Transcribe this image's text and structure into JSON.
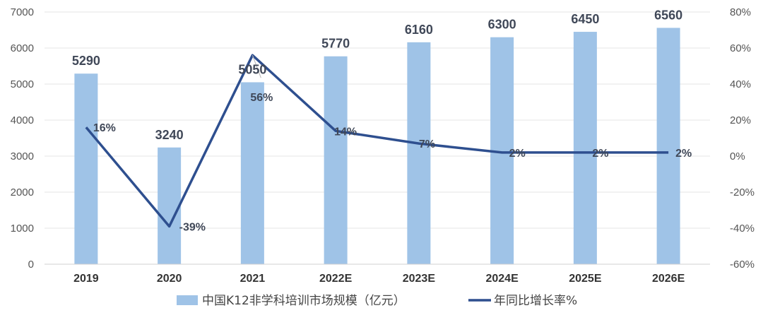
{
  "chart_data": {
    "type": "bar",
    "categories": [
      "2019",
      "2020",
      "2021",
      "2022E",
      "2023E",
      "2024E",
      "2025E",
      "2026E"
    ],
    "series": [
      {
        "name": "中国K12非学科培训市场规模（亿元）",
        "kind": "bar",
        "axis": "left",
        "color": "#9fc3e7",
        "values": [
          5290,
          3240,
          5050,
          5770,
          6160,
          6300,
          6450,
          6560
        ],
        "labels": [
          "5290",
          "3240",
          "5050",
          "5770",
          "6160",
          "6300",
          "6450",
          "6560"
        ]
      },
      {
        "name": "年同比增长率%",
        "kind": "line",
        "axis": "right",
        "color": "#2e4f8f",
        "values": [
          16,
          -39,
          56,
          14,
          7,
          2,
          2,
          2
        ],
        "labels": [
          "16%",
          "-39%",
          "56%",
          "14%",
          "7%",
          "2%",
          "2%",
          "2%"
        ]
      }
    ],
    "y_left": {
      "ylim": [
        0,
        7000
      ],
      "ticks": [
        0,
        1000,
        2000,
        3000,
        4000,
        5000,
        6000,
        7000
      ],
      "tick_labels": [
        "0",
        "1000",
        "2000",
        "3000",
        "4000",
        "5000",
        "6000",
        "7000"
      ]
    },
    "y_right": {
      "ylim": [
        -60,
        80
      ],
      "ticks": [
        -60,
        -40,
        -20,
        0,
        20,
        40,
        60,
        80
      ],
      "tick_labels": [
        "-60%",
        "-40%",
        "-20%",
        "0%",
        "20%",
        "40%",
        "60%",
        "80%"
      ]
    },
    "grid": true,
    "legend_position": "bottom"
  }
}
